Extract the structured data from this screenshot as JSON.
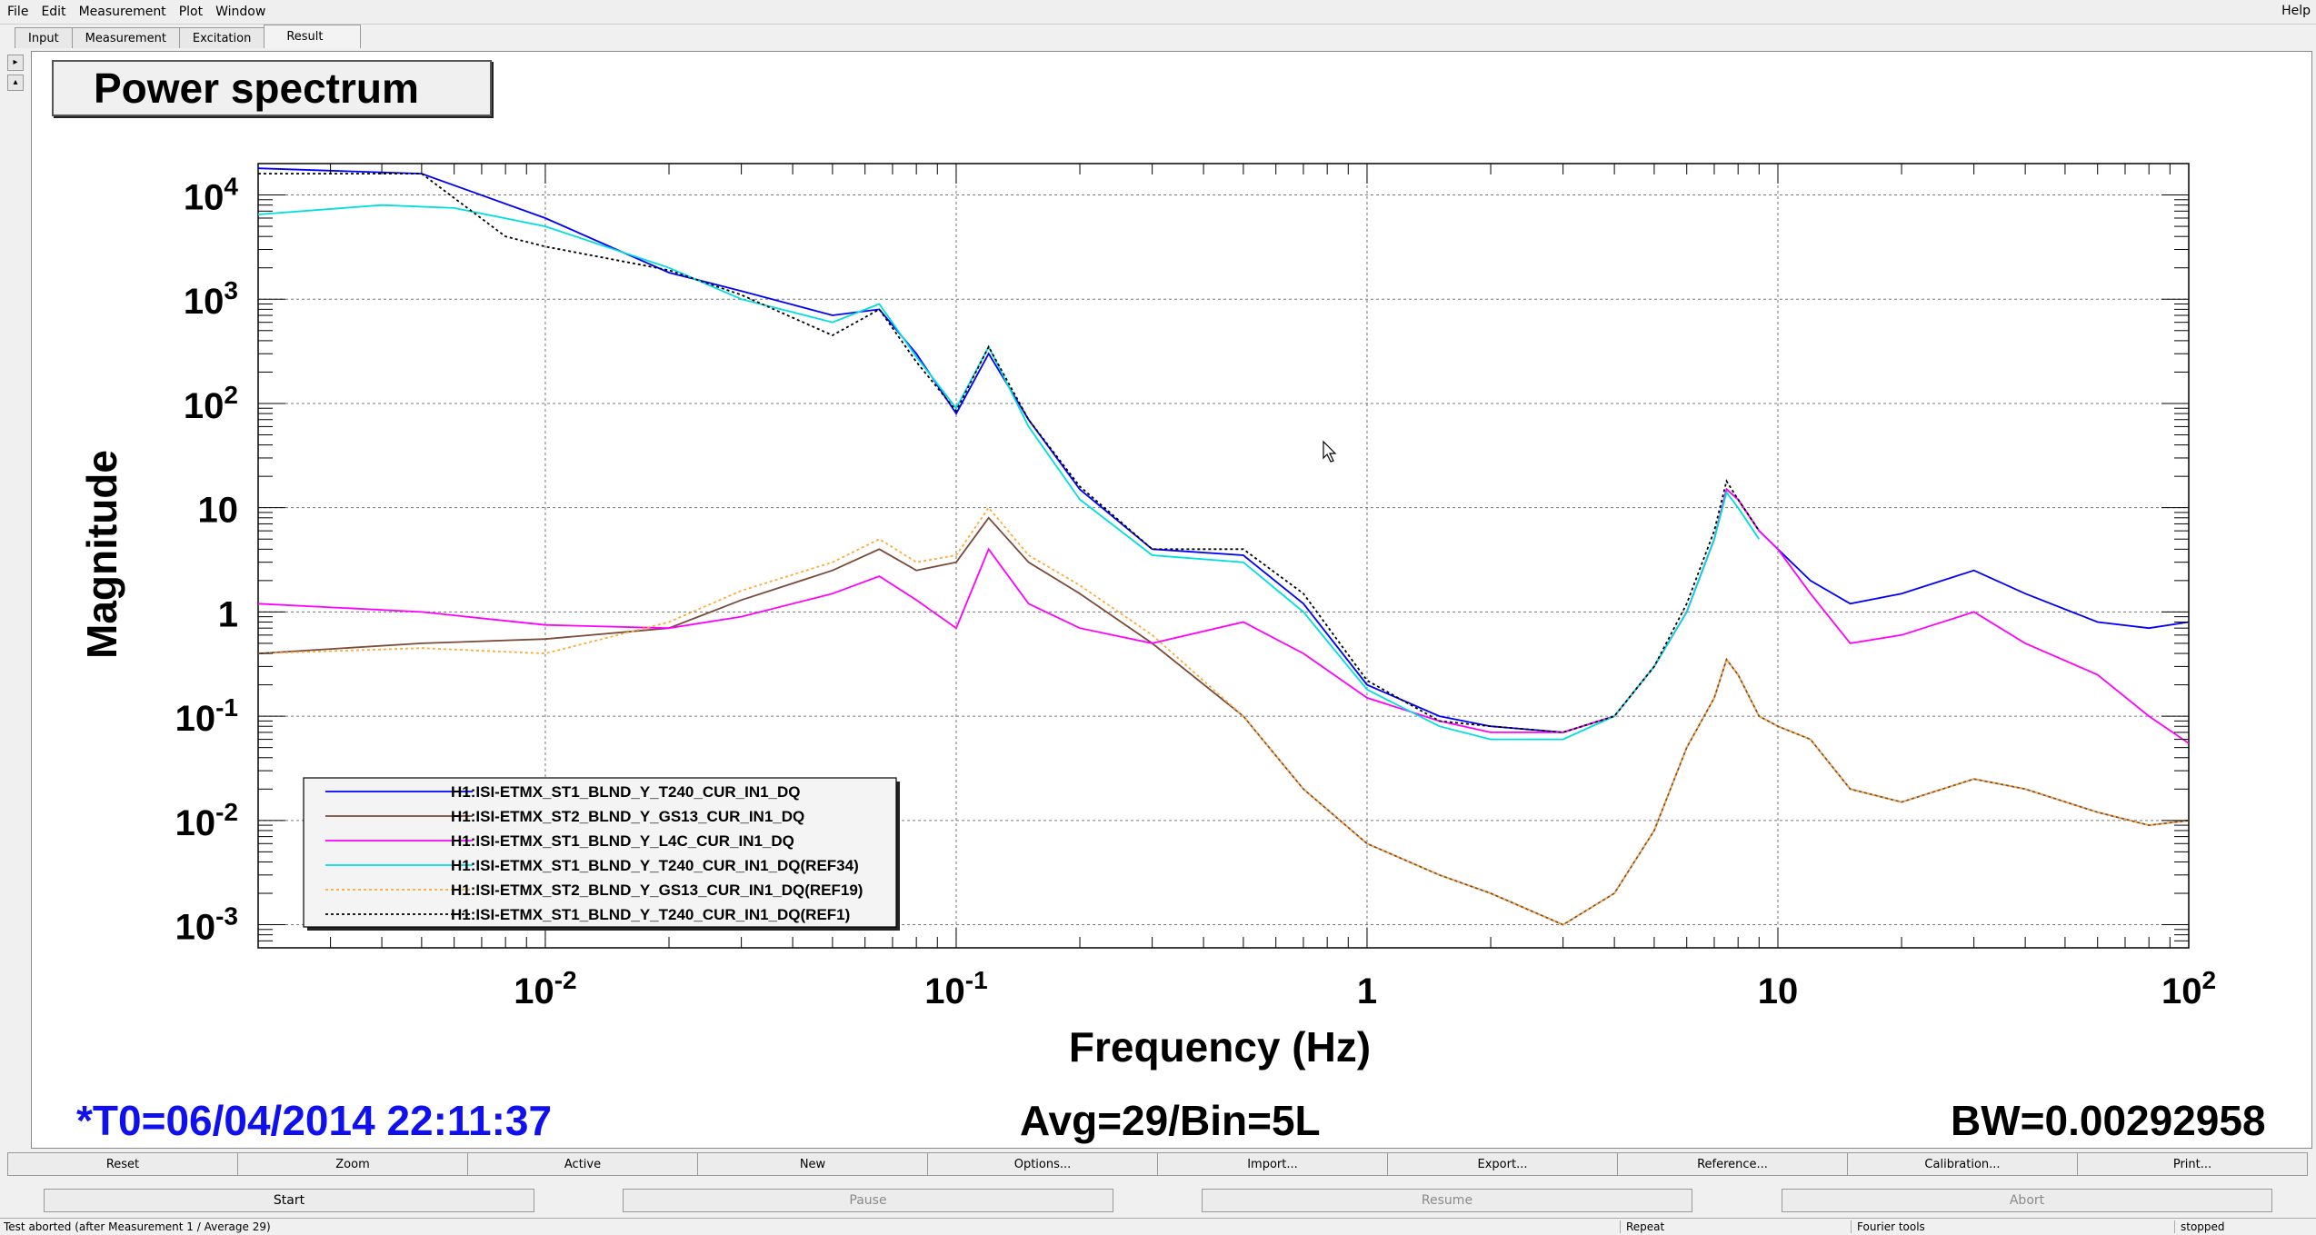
{
  "menubar": {
    "items": [
      "File",
      "Edit",
      "Measurement",
      "Plot",
      "Window"
    ],
    "help": "Help"
  },
  "tabs": [
    "Input",
    "Measurement",
    "Excitation",
    "Result"
  ],
  "plot": {
    "title": "Power spectrum",
    "t0": "*T0=06/04/2014 22:11:37",
    "avg": "Avg=29/Bin=5L",
    "bw": "BW=0.00292958"
  },
  "chart_data": {
    "type": "line",
    "xlabel": "Frequency (Hz)",
    "ylabel": "Magnitude",
    "xscale": "log",
    "yscale": "log",
    "xlim": [
      0.002,
      100
    ],
    "ylim": [
      0.0006,
      20000
    ],
    "grid": true,
    "legend_position": "bottom-left",
    "x_ticks": [
      "10^-2",
      "10^-1",
      "1",
      "10",
      "10^2"
    ],
    "y_ticks": [
      "10^4",
      "10^3",
      "10^2",
      "10",
      "1",
      "10^-1",
      "10^-2",
      "10^-3"
    ],
    "series": [
      {
        "name": "H1:ISI-ETMX_ST1_BLND_Y_T240_CUR_IN1_DQ",
        "color": "#0000ff",
        "style": "solid",
        "x": [
          0.002,
          0.005,
          0.01,
          0.02,
          0.03,
          0.05,
          0.065,
          0.08,
          0.1,
          0.12,
          0.15,
          0.2,
          0.3,
          0.5,
          0.7,
          1,
          1.5,
          2,
          3,
          4,
          5,
          6,
          7,
          7.5,
          8,
          9,
          10,
          12,
          15,
          20,
          30,
          40,
          60,
          80,
          100
        ],
        "y": [
          18000,
          16000,
          6000,
          1800,
          1200,
          700,
          800,
          300,
          80,
          300,
          70,
          15,
          4,
          3.5,
          1.2,
          0.2,
          0.1,
          0.08,
          0.07,
          0.1,
          0.3,
          1,
          5,
          15,
          12,
          6,
          4,
          2,
          1.2,
          1.5,
          2.5,
          1.5,
          0.8,
          0.7,
          0.8
        ]
      },
      {
        "name": "H1:ISI-ETMX_ST2_BLND_Y_GS13_CUR_IN1_DQ",
        "color": "#7a4a3a",
        "style": "solid",
        "x": [
          0.002,
          0.005,
          0.01,
          0.02,
          0.03,
          0.05,
          0.065,
          0.08,
          0.1,
          0.12,
          0.15,
          0.2,
          0.3,
          0.5,
          0.7,
          1,
          1.5,
          2,
          3,
          4,
          5,
          6,
          7,
          7.5,
          8,
          9,
          10,
          12,
          15,
          20,
          30,
          40,
          60,
          80,
          100
        ],
        "y": [
          0.4,
          0.5,
          0.55,
          0.7,
          1.3,
          2.5,
          4,
          2.5,
          3,
          8,
          3,
          1.5,
          0.5,
          0.1,
          0.02,
          0.006,
          0.003,
          0.002,
          0.001,
          0.002,
          0.008,
          0.05,
          0.15,
          0.35,
          0.25,
          0.1,
          0.08,
          0.06,
          0.02,
          0.015,
          0.025,
          0.02,
          0.012,
          0.009,
          0.01
        ]
      },
      {
        "name": "H1:ISI-ETMX_ST1_BLND_Y_L4C_CUR_IN1_DQ",
        "color": "#ff00ff",
        "style": "solid",
        "x": [
          0.002,
          0.005,
          0.01,
          0.02,
          0.03,
          0.05,
          0.065,
          0.08,
          0.1,
          0.12,
          0.15,
          0.2,
          0.3,
          0.5,
          0.7,
          1,
          1.5,
          2,
          3,
          4,
          5,
          6,
          7,
          7.5,
          8,
          9,
          10,
          12,
          15,
          20,
          30,
          40,
          60,
          80,
          100
        ],
        "y": [
          1.2,
          1.0,
          0.75,
          0.7,
          0.9,
          1.5,
          2.2,
          1.3,
          0.7,
          4,
          1.2,
          0.7,
          0.5,
          0.8,
          0.4,
          0.15,
          0.09,
          0.07,
          0.07,
          0.1,
          0.3,
          1,
          5,
          15,
          12,
          6,
          4,
          1.5,
          0.5,
          0.6,
          1.0,
          0.5,
          0.25,
          0.1,
          0.055
        ]
      },
      {
        "name": "H1:ISI-ETMX_ST1_BLND_Y_T240_CUR_IN1_DQ(REF34)",
        "color": "#00dddd",
        "style": "solid",
        "x": [
          0.002,
          0.004,
          0.006,
          0.01,
          0.02,
          0.03,
          0.05,
          0.065,
          0.08,
          0.1,
          0.12,
          0.15,
          0.2,
          0.3,
          0.5,
          0.7,
          1,
          1.5,
          2,
          3,
          4,
          5,
          6,
          7,
          7.5,
          8,
          9
        ],
        "y": [
          6500,
          8000,
          7500,
          5000,
          2000,
          1000,
          600,
          900,
          280,
          90,
          350,
          60,
          12,
          3.5,
          3,
          1,
          0.18,
          0.08,
          0.06,
          0.06,
          0.1,
          0.3,
          1,
          5,
          14,
          10,
          5
        ]
      },
      {
        "name": "H1:ISI-ETMX_ST2_BLND_Y_GS13_CUR_IN1_DQ(REF19)",
        "color": "#ffaa33",
        "style": "dotted",
        "x": [
          0.002,
          0.005,
          0.01,
          0.015,
          0.02,
          0.03,
          0.05,
          0.065,
          0.08,
          0.1,
          0.12,
          0.15,
          0.2,
          0.3,
          0.5,
          0.7,
          1,
          1.5,
          2,
          3,
          4,
          5,
          6,
          7,
          7.5,
          8,
          9,
          10,
          12,
          15,
          20,
          30,
          40,
          60,
          80,
          100
        ],
        "y": [
          0.4,
          0.45,
          0.4,
          0.6,
          0.8,
          1.6,
          3,
          5,
          3,
          3.5,
          10,
          3.5,
          1.8,
          0.6,
          0.1,
          0.02,
          0.006,
          0.003,
          0.002,
          0.001,
          0.002,
          0.008,
          0.05,
          0.15,
          0.35,
          0.25,
          0.1,
          0.08,
          0.06,
          0.02,
          0.015,
          0.025,
          0.02,
          0.012,
          0.009,
          0.01
        ]
      },
      {
        "name": "H1:ISI-ETMX_ST1_BLND_Y_T240_CUR_IN1_DQ(REF1)",
        "color": "#000000",
        "style": "dotted",
        "x": [
          0.002,
          0.005,
          0.008,
          0.01,
          0.02,
          0.03,
          0.05,
          0.065,
          0.08,
          0.1,
          0.12,
          0.15,
          0.2,
          0.3,
          0.5,
          0.7,
          1,
          1.5,
          2,
          3,
          4,
          5,
          6,
          7,
          7.5,
          8,
          9
        ],
        "y": [
          16000,
          16000,
          4000,
          3200,
          1900,
          1100,
          450,
          800,
          250,
          85,
          350,
          70,
          16,
          4,
          4,
          1.5,
          0.22,
          0.09,
          0.08,
          0.07,
          0.1,
          0.3,
          1.2,
          6,
          18,
          12,
          6
        ]
      }
    ]
  },
  "toolbar": {
    "buttons": [
      "Reset",
      "Zoom",
      "Active",
      "New",
      "Options...",
      "Import...",
      "Export...",
      "Reference...",
      "Calibration...",
      "Print..."
    ]
  },
  "controls": {
    "start": "Start",
    "pause": "Pause",
    "resume": "Resume",
    "abort": "Abort"
  },
  "statusbar": {
    "message": "Test aborted (after Measurement 1 / Average 29)",
    "repeat": "Repeat",
    "fourier": "Fourier tools",
    "state": "stopped"
  }
}
